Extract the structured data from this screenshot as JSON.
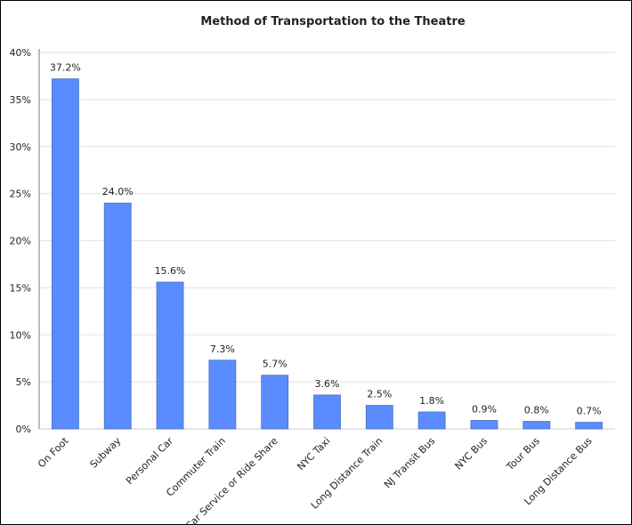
{
  "chart_data": {
    "type": "bar",
    "title": "Method of Transportation to the Theatre",
    "xlabel": "",
    "ylabel": "",
    "categories": [
      "On Foot",
      "Subway",
      "Personal Car",
      "Commuter Train",
      "Car Service or Ride Share",
      "NYC Taxi",
      "Long Distance Train",
      "NJ Transit Bus",
      "NYC Bus",
      "Tour Bus",
      "Long Distance Bus"
    ],
    "values": [
      37.2,
      24.0,
      15.6,
      7.3,
      5.7,
      3.6,
      2.5,
      1.8,
      0.9,
      0.8,
      0.7
    ],
    "data_labels": [
      "37.2%",
      "24.0%",
      "15.6%",
      "7.3%",
      "5.7%",
      "3.6%",
      "2.5%",
      "1.8%",
      "0.9%",
      "0.8%",
      "0.7%"
    ],
    "ylim": [
      0,
      40
    ],
    "yticks": [
      "0%",
      "5%",
      "10%",
      "15%",
      "20%",
      "25%",
      "30%",
      "35%",
      "40%"
    ],
    "grid": true,
    "legend": "none",
    "bar_color": "#5b8cff",
    "bar_edge_color": "#4a6fc0"
  }
}
